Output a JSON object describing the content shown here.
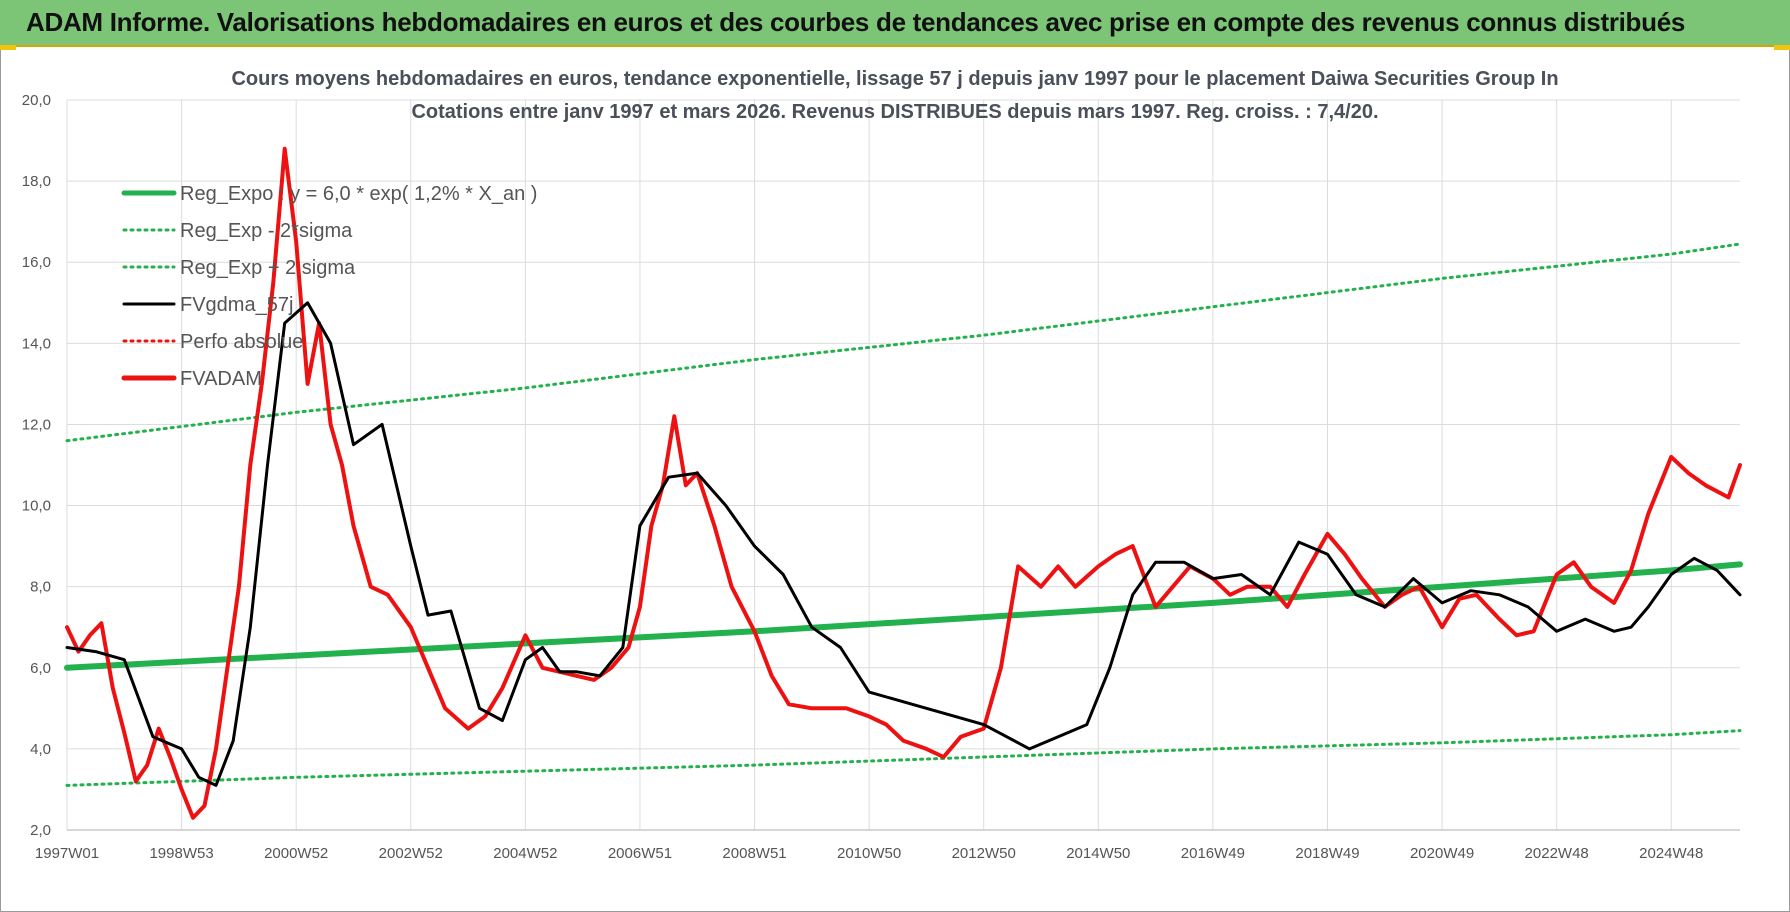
{
  "banner": {
    "title": "ADAM Informe. Valorisations hebdomadaires en euros et des courbes de tendances avec prise en compte des revenus connus distribués"
  },
  "colors": {
    "banner_bg": "#7cc576",
    "reg_expo": "#22b14c",
    "fvgdma": "#000000",
    "fvadam": "#ee1111",
    "perfo": "#ee1111"
  },
  "chart_data": {
    "type": "line",
    "title": [
      "Cours moyens hebdomadaires en euros, tendance exponentielle, lissage 57 j depuis janv 1997 pour le placement Daiwa Securities Group In",
      "Cotations entre janv 1997 et mars 2026. Revenus DISTRIBUES depuis mars 1997. Reg. croiss. : 7,4/20."
    ],
    "ylim": [
      2,
      20
    ],
    "yticks": [
      "2,0",
      "4,0",
      "6,0",
      "8,0",
      "10,0",
      "12,0",
      "14,0",
      "16,0",
      "18,0",
      "20,0"
    ],
    "xlim": [
      1997.0,
      2026.2
    ],
    "xticks": [
      {
        "label": "1997W01",
        "x": 1997.0
      },
      {
        "label": "1998W53",
        "x": 1999.0
      },
      {
        "label": "2000W52",
        "x": 2001.0
      },
      {
        "label": "2002W52",
        "x": 2003.0
      },
      {
        "label": "2004W52",
        "x": 2005.0
      },
      {
        "label": "2006W51",
        "x": 2007.0
      },
      {
        "label": "2008W51",
        "x": 2009.0
      },
      {
        "label": "2010W50",
        "x": 2011.0
      },
      {
        "label": "2012W50",
        "x": 2013.0
      },
      {
        "label": "2014W50",
        "x": 2015.0
      },
      {
        "label": "2016W49",
        "x": 2017.0
      },
      {
        "label": "2018W49",
        "x": 2019.0
      },
      {
        "label": "2020W49",
        "x": 2021.0
      },
      {
        "label": "2022W48",
        "x": 2023.0
      },
      {
        "label": "2024W48",
        "x": 2025.0
      }
    ],
    "grid": true,
    "legend_position": "top-left",
    "legend": [
      {
        "name": "Reg_Expo : y = 6,0 * exp( 1,2% *  X_an )",
        "style": "solid-thick",
        "color": "#22b14c"
      },
      {
        "name": "Reg_Exp - 2*sigma",
        "style": "dotted",
        "color": "#22b14c"
      },
      {
        "name": "Reg_Exp + 2 sigma",
        "style": "dotted",
        "color": "#22b14c"
      },
      {
        "name": "FVgdma_57j",
        "style": "solid",
        "color": "#000000"
      },
      {
        "name": "Perfo absolue",
        "style": "dotted",
        "color": "#ee1111"
      },
      {
        "name": "FVADAM",
        "style": "solid-thick",
        "color": "#ee1111"
      }
    ],
    "series": [
      {
        "name": "Reg_Expo : y = 6,0 * exp( 1,2% *  X_an )",
        "x": [
          1997.0,
          2001.0,
          2005.0,
          2009.0,
          2013.0,
          2017.0,
          2021.0,
          2025.0,
          2026.2
        ],
        "values": [
          6.0,
          6.3,
          6.6,
          6.9,
          7.25,
          7.6,
          8.0,
          8.4,
          8.55
        ]
      },
      {
        "name": "Reg_Exp - 2*sigma",
        "x": [
          1997.0,
          2001.0,
          2005.0,
          2009.0,
          2013.0,
          2017.0,
          2021.0,
          2025.0,
          2026.2
        ],
        "values": [
          3.1,
          3.3,
          3.45,
          3.6,
          3.8,
          4.0,
          4.15,
          4.35,
          4.45
        ]
      },
      {
        "name": "Reg_Exp + 2 sigma",
        "x": [
          1997.0,
          2001.0,
          2005.0,
          2009.0,
          2013.0,
          2017.0,
          2021.0,
          2025.0,
          2026.2
        ],
        "values": [
          11.6,
          12.3,
          12.9,
          13.6,
          14.2,
          14.9,
          15.6,
          16.2,
          16.45
        ]
      },
      {
        "name": "FVgdma_57j",
        "x": [
          1997.0,
          1997.5,
          1998.0,
          1998.5,
          1999.0,
          1999.3,
          1999.6,
          1999.9,
          2000.2,
          2000.5,
          2000.8,
          2001.2,
          2001.6,
          2002.0,
          2002.5,
          2003.0,
          2003.3,
          2003.7,
          2004.2,
          2004.6,
          2005.0,
          2005.3,
          2005.6,
          2005.9,
          2006.3,
          2006.7,
          2007.0,
          2007.5,
          2008.0,
          2008.5,
          2009.0,
          2009.5,
          2010.0,
          2010.5,
          2011.0,
          2011.5,
          2012.0,
          2012.5,
          2013.0,
          2013.4,
          2013.8,
          2014.3,
          2014.8,
          2015.2,
          2015.6,
          2016.0,
          2016.5,
          2017.0,
          2017.5,
          2018.0,
          2018.5,
          2019.0,
          2019.5,
          2020.0,
          2020.5,
          2021.0,
          2021.5,
          2022.0,
          2022.5,
          2023.0,
          2023.5,
          2024.0,
          2024.3,
          2024.6,
          2025.0,
          2025.4,
          2025.8,
          2026.2
        ],
        "values": [
          6.5,
          6.4,
          6.2,
          4.3,
          4.0,
          3.3,
          3.1,
          4.2,
          7.0,
          11.0,
          14.5,
          15.0,
          14.0,
          11.5,
          12.0,
          9.0,
          7.3,
          7.4,
          5.0,
          4.7,
          6.2,
          6.5,
          5.9,
          5.9,
          5.8,
          6.5,
          9.5,
          10.7,
          10.8,
          10.0,
          9.0,
          8.3,
          7.0,
          6.5,
          5.4,
          5.2,
          5.0,
          4.8,
          4.6,
          4.3,
          4.0,
          4.3,
          4.6,
          6.0,
          7.8,
          8.6,
          8.6,
          8.2,
          8.3,
          7.8,
          9.1,
          8.8,
          7.8,
          7.5,
          8.2,
          7.6,
          7.9,
          7.8,
          7.5,
          6.9,
          7.2,
          6.9,
          7.0,
          7.5,
          8.3,
          8.7,
          8.4,
          7.8
        ]
      },
      {
        "name": "FVADAM",
        "x": [
          1997.0,
          1997.2,
          1997.4,
          1997.6,
          1997.8,
          1998.0,
          1998.2,
          1998.4,
          1998.6,
          1998.8,
          1999.0,
          1999.2,
          1999.4,
          1999.6,
          1999.8,
          2000.0,
          2000.2,
          2000.4,
          2000.6,
          2000.8,
          2001.0,
          2001.2,
          2001.4,
          2001.6,
          2001.8,
          2002.0,
          2002.3,
          2002.6,
          2003.0,
          2003.3,
          2003.6,
          2004.0,
          2004.3,
          2004.6,
          2005.0,
          2005.3,
          2005.6,
          2005.9,
          2006.2,
          2006.5,
          2006.8,
          2007.0,
          2007.2,
          2007.4,
          2007.6,
          2007.8,
          2008.0,
          2008.3,
          2008.6,
          2009.0,
          2009.3,
          2009.6,
          2010.0,
          2010.3,
          2010.6,
          2011.0,
          2011.3,
          2011.6,
          2012.0,
          2012.3,
          2012.6,
          2013.0,
          2013.3,
          2013.6,
          2014.0,
          2014.3,
          2014.6,
          2015.0,
          2015.3,
          2015.6,
          2016.0,
          2016.3,
          2016.6,
          2017.0,
          2017.3,
          2017.6,
          2018.0,
          2018.3,
          2018.6,
          2019.0,
          2019.3,
          2019.6,
          2020.0,
          2020.3,
          2020.6,
          2021.0,
          2021.3,
          2021.6,
          2022.0,
          2022.3,
          2022.6,
          2023.0,
          2023.3,
          2023.6,
          2024.0,
          2024.3,
          2024.6,
          2025.0,
          2025.3,
          2025.6,
          2026.0,
          2026.2
        ],
        "values": [
          7.0,
          6.4,
          6.8,
          7.1,
          5.5,
          4.4,
          3.2,
          3.6,
          4.5,
          3.8,
          3.0,
          2.3,
          2.6,
          4.0,
          6.0,
          8.0,
          11.0,
          13.0,
          15.5,
          18.8,
          16.5,
          13.0,
          14.5,
          12.0,
          11.0,
          9.5,
          8.0,
          7.8,
          7.0,
          6.0,
          5.0,
          4.5,
          4.8,
          5.5,
          6.8,
          6.0,
          5.9,
          5.8,
          5.7,
          6.0,
          6.5,
          7.5,
          9.5,
          10.5,
          12.2,
          10.5,
          10.8,
          9.5,
          8.0,
          6.9,
          5.8,
          5.1,
          5.0,
          5.0,
          5.0,
          4.8,
          4.6,
          4.2,
          4.0,
          3.8,
          4.3,
          4.5,
          6.0,
          8.5,
          8.0,
          8.5,
          8.0,
          8.5,
          8.8,
          9.0,
          7.5,
          8.0,
          8.5,
          8.2,
          7.8,
          8.0,
          8.0,
          7.5,
          8.3,
          9.3,
          8.8,
          8.2,
          7.5,
          7.8,
          8.0,
          7.0,
          7.7,
          7.8,
          7.2,
          6.8,
          6.9,
          8.3,
          8.6,
          8.0,
          7.6,
          8.4,
          9.8,
          11.2,
          10.8,
          10.5,
          10.2,
          11.0
        ]
      }
    ]
  }
}
